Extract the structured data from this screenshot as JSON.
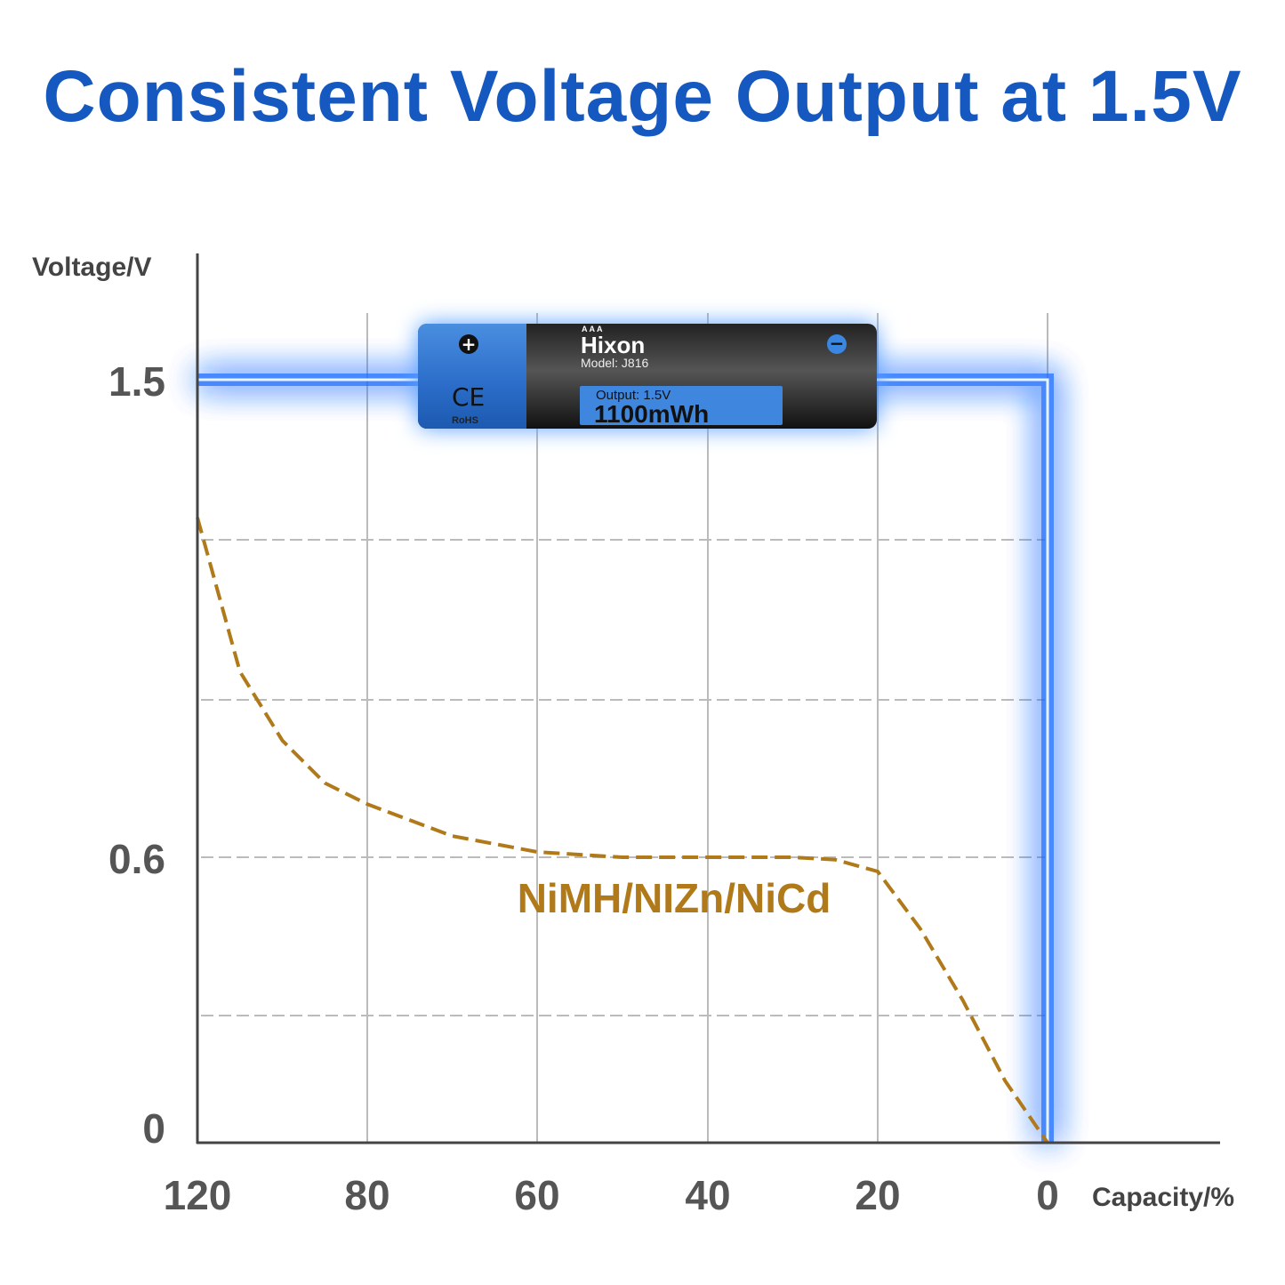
{
  "title": "Consistent Voltage Output at 1.5V",
  "chart_data": {
    "type": "line",
    "title": "Consistent Voltage Output at 1.5V",
    "xlabel": "Capacity/%",
    "ylabel": "Voltage/V",
    "x_ticks": [
      120,
      80,
      60,
      40,
      20,
      0
    ],
    "y_ticks": [
      0,
      0.6,
      1.5
    ],
    "grid": true,
    "series": [
      {
        "name": "",
        "color": "#1e6cff",
        "style": "solid-glow",
        "points": [
          [
            120,
            1.5
          ],
          [
            0,
            1.5
          ],
          [
            0,
            0
          ]
        ]
      },
      {
        "name": "NiMH/NIZn/NiCd",
        "color": "#b07a1a",
        "style": "dashed",
        "points": [
          [
            120,
            1.24
          ],
          [
            110,
            0.95
          ],
          [
            100,
            0.82
          ],
          [
            90,
            0.74
          ],
          [
            80,
            0.7
          ],
          [
            70,
            0.64
          ],
          [
            60,
            0.61
          ],
          [
            50,
            0.6
          ],
          [
            40,
            0.6
          ],
          [
            30,
            0.6
          ],
          [
            25,
            0.595
          ],
          [
            20,
            0.57
          ],
          [
            15,
            0.45
          ],
          [
            10,
            0.3
          ],
          [
            5,
            0.13
          ],
          [
            0,
            0
          ]
        ]
      }
    ]
  },
  "battery": {
    "size": "AAA",
    "brand": "Hixon",
    "model": "Model: J816",
    "output": "Output: 1.5V",
    "capacity": "1100mWh",
    "cert": "CE",
    "rohs": "RoHS"
  }
}
